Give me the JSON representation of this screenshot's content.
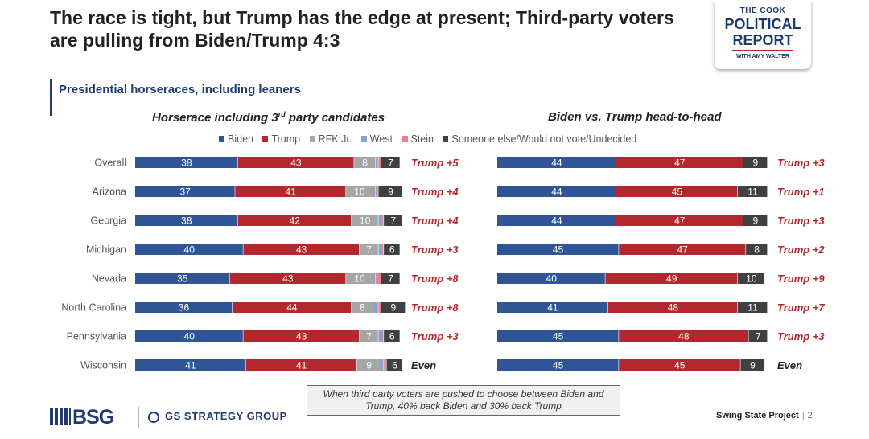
{
  "header": {
    "title": "The race is tight, but Trump has the edge at present; Third-party voters are pulling from Biden/Trump 4:3",
    "subtitle": "Presidential horseraces, including leaners"
  },
  "logo": {
    "line1": "THE COOK",
    "line2": "POLITICAL",
    "line3": "REPORT",
    "line4": "WITH AMY WALTER"
  },
  "colors": {
    "Biden": "#2f5597",
    "Trump": "#b3282d",
    "RFK Jr.": "#a6a6a6",
    "West": "#7ea6d8",
    "Stein": "#e8838c",
    "Someone else/Would not vote/Undecided": "#404040",
    "margin_text": "#b3282d"
  },
  "legend": [
    "Biden",
    "Trump",
    "RFK Jr.",
    "West",
    "Stein",
    "Someone else/Would not vote/Undecided"
  ],
  "chart_data": [
    {
      "type": "bar",
      "stacked": true,
      "orientation": "horizontal",
      "title": "Horserace including 3rd party candidates",
      "categories": [
        "Overall",
        "Arizona",
        "Georgia",
        "Michigan",
        "Nevada",
        "North Carolina",
        "Pennsylvania",
        "Wisconsin"
      ],
      "series": [
        {
          "name": "Biden",
          "values": [
            38,
            37,
            38,
            40,
            35,
            36,
            40,
            41
          ]
        },
        {
          "name": "Trump",
          "values": [
            43,
            41,
            42,
            43,
            43,
            44,
            43,
            41
          ]
        },
        {
          "name": "RFK Jr.",
          "values": [
            8,
            10,
            10,
            7,
            10,
            8,
            7,
            9
          ]
        },
        {
          "name": "West",
          "values": [
            1,
            1,
            1,
            1,
            1,
            2,
            1,
            1
          ]
        },
        {
          "name": "Stein",
          "values": [
            1,
            1,
            1,
            1,
            2,
            1,
            1,
            1
          ]
        },
        {
          "name": "Someone else/Would not vote/Undecided",
          "values": [
            7,
            9,
            7,
            6,
            7,
            9,
            6,
            6
          ]
        }
      ],
      "labeled_series": [
        "Biden",
        "Trump",
        "RFK Jr.",
        "Someone else/Would not vote/Undecided"
      ],
      "margins": [
        "Trump +5",
        "Trump +4",
        "Trump +4",
        "Trump +3",
        "Trump +8",
        "Trump +8",
        "Trump +3",
        "Even"
      ],
      "xlim": [
        0,
        100
      ]
    },
    {
      "type": "bar",
      "stacked": true,
      "orientation": "horizontal",
      "title": "Biden vs. Trump head-to-head",
      "categories": [
        "Overall",
        "Arizona",
        "Georgia",
        "Michigan",
        "Nevada",
        "North Carolina",
        "Pennsylvania",
        "Wisconsin"
      ],
      "series": [
        {
          "name": "Biden",
          "values": [
            44,
            44,
            44,
            45,
            40,
            41,
            45,
            45
          ]
        },
        {
          "name": "Trump",
          "values": [
            47,
            45,
            47,
            47,
            49,
            48,
            48,
            45
          ]
        },
        {
          "name": "Someone else/Would not vote/Undecided",
          "values": [
            9,
            11,
            9,
            8,
            10,
            11,
            7,
            9
          ]
        }
      ],
      "labeled_series": [
        "Biden",
        "Trump",
        "Someone else/Would not vote/Undecided"
      ],
      "margins": [
        "Trump +3",
        "Trump +1",
        "Trump +3",
        "Trump +2",
        "Trump +9",
        "Trump +7",
        "Trump +3",
        "Even"
      ],
      "xlim": [
        0,
        100
      ]
    }
  ],
  "note": "When third party voters are pushed to choose between Biden and Trump, 40% back Biden and 30% back Trump",
  "footer": {
    "bsg": "BSG",
    "gs": "GS STRATEGY GROUP",
    "project": "Swing State Project",
    "separator": "|",
    "page": "2"
  }
}
